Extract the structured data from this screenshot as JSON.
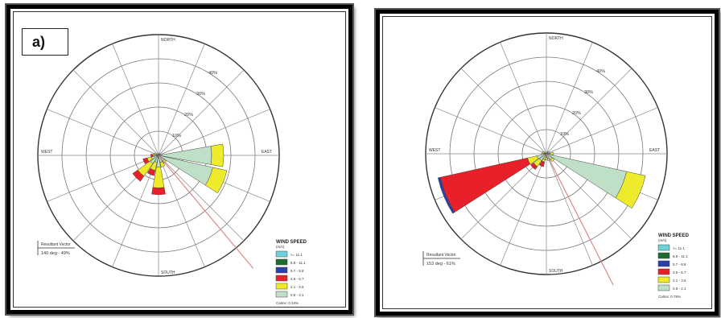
{
  "chart_data": [
    {
      "type": "polar_bar",
      "panel_label": "a)",
      "directions": {
        "north": "NORTH",
        "south": "SOUTH",
        "east": "EAST",
        "west": "WEST"
      },
      "ring_labels": [
        "10%",
        "20%",
        "30%",
        "40%"
      ],
      "calms": "Calms: 0.34%",
      "resultant_vector": {
        "title": "Resultant Vector",
        "value": "140 deg - 49%",
        "direction_deg": 140
      },
      "legend": {
        "title": "WIND SPEED",
        "unit": "(m/s)",
        "classes": [
          {
            "label": ">= 11.1",
            "color": "#6ed3d8"
          },
          {
            "label": "8.8 - 11.1",
            "color": "#1d6b2e"
          },
          {
            "label": "5.7 - 8.8",
            "color": "#2c3fa8"
          },
          {
            "label": "3.6 - 5.7",
            "color": "#e8202a"
          },
          {
            "label": "2.1 - 3.6",
            "color": "#eeea2c"
          },
          {
            "label": "0.5 - 2.1",
            "color": "#bfe0c6"
          }
        ]
      },
      "sectors": [
        {
          "dir": 90,
          "cum": [
            22,
            27
          ]
        },
        {
          "dir": 112.5,
          "cum": [
            23,
            29
          ]
        },
        {
          "dir": 135,
          "cum": [
            3,
            4
          ]
        },
        {
          "dir": 157.5,
          "cum": [
            3,
            5
          ]
        },
        {
          "dir": 180,
          "cum": [
            4.8,
            13.5,
            16.3
          ]
        },
        {
          "dir": 202.5,
          "cum": [
            3,
            6.4,
            8.6
          ]
        },
        {
          "dir": 225,
          "cum": [
            4.2,
            10.5,
            13.1
          ]
        },
        {
          "dir": 247.5,
          "cum": [
            3,
            4.8,
            6.6
          ]
        },
        {
          "dir": 270,
          "cum": [
            1.6,
            2.3,
            3.2
          ]
        },
        {
          "dir": 292.5,
          "cum": [
            1.2,
            2
          ]
        },
        {
          "dir": 45,
          "cum": [
            1
          ]
        },
        {
          "dir": 67.5,
          "cum": [
            1.5
          ]
        },
        {
          "dir": 0,
          "cum": [
            0.8
          ]
        }
      ]
    },
    {
      "type": "polar_bar",
      "panel_label": "",
      "directions": {
        "north": "NORTH",
        "south": "SOUTH",
        "east": "EAST",
        "west": "WEST"
      },
      "ring_labels": [
        "10%",
        "20%",
        "30%",
        "40%"
      ],
      "calms": "Calms: 0.79%",
      "resultant_vector": {
        "title": "Resultant Vector",
        "value": "153 deg - 61%",
        "direction_deg": 153
      },
      "legend": {
        "title": "WIND SPEED",
        "unit": "(m/s)",
        "classes": [
          {
            "label": ">= 11.1",
            "color": "#6ed3d8"
          },
          {
            "label": "8.8 - 11.1",
            "color": "#1d6b2e"
          },
          {
            "label": "5.7 - 8.8",
            "color": "#2c3fa8"
          },
          {
            "label": "3.6 - 5.7",
            "color": "#e8202a"
          },
          {
            "label": "2.1 - 3.6",
            "color": "#eeea2c"
          },
          {
            "label": "0.5 - 2.1",
            "color": "#bfe0c6"
          }
        ]
      },
      "sectors": [
        {
          "dir": 112.5,
          "cum": [
            34,
            42
          ]
        },
        {
          "dir": 90,
          "cum": [
            1.5,
            3
          ]
        },
        {
          "dir": 135,
          "cum": [
            3,
            4
          ]
        },
        {
          "dir": 157.5,
          "cum": [
            2,
            3
          ]
        },
        {
          "dir": 180,
          "cum": [
            1.5,
            2.5
          ]
        },
        {
          "dir": 202.5,
          "cum": [
            2.5,
            3.5,
            5.5
          ]
        },
        {
          "dir": 225,
          "cum": [
            3.5,
            6.5,
            8
          ]
        },
        {
          "dir": 247.5,
          "cum": [
            4,
            8,
            45,
            46
          ]
        },
        {
          "dir": 270,
          "cum": [
            1,
            2
          ]
        },
        {
          "dir": 292.5,
          "cum": [
            1,
            1.8
          ]
        },
        {
          "dir": 45,
          "cum": [
            1.2
          ]
        },
        {
          "dir": 67.5,
          "cum": [
            1.5
          ]
        }
      ]
    }
  ]
}
